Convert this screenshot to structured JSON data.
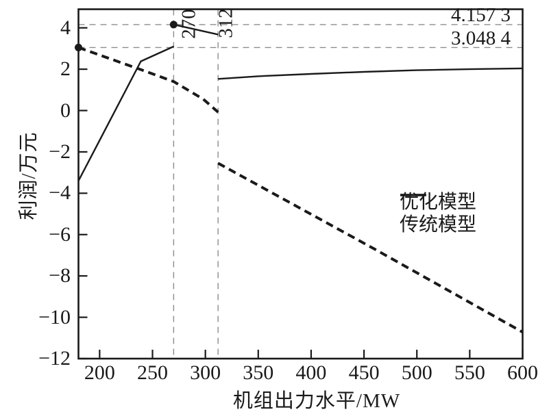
{
  "chart_data": {
    "type": "line",
    "title": "",
    "xlabel": "机组出力水平/MW",
    "ylabel": "利润/万元",
    "xlim": [
      180,
      600
    ],
    "ylim": [
      -12,
      4.9
    ],
    "grid": false,
    "x_ticks": [
      200,
      250,
      300,
      350,
      400,
      450,
      500,
      550,
      600
    ],
    "x_tick_labels": [
      "200",
      "250",
      "300",
      "350",
      "400",
      "450",
      "500",
      "550",
      "600"
    ],
    "y_ticks": [
      4,
      2,
      0,
      -2,
      -4,
      -6,
      -8,
      -10,
      -12
    ],
    "y_tick_labels": [
      "4",
      "2",
      "0",
      "−2",
      "−4",
      "−6",
      "−8",
      "−10",
      "−12"
    ],
    "legend_position": "right-middle",
    "series": [
      {
        "name": "优化模型",
        "style": "solid",
        "color": "#1a1a1a",
        "segments": [
          [
            [
              180,
              -3.4
            ],
            [
              239,
              2.38
            ],
            [
              270,
              3.1
            ]
          ],
          [
            [
              270,
              4.1573
            ],
            [
              312,
              3.68
            ]
          ],
          [
            [
              312,
              1.53
            ],
            [
              350,
              1.66
            ],
            [
              400,
              1.77
            ],
            [
              450,
              1.87
            ],
            [
              500,
              1.95
            ],
            [
              550,
              2.0
            ],
            [
              600,
              2.04
            ]
          ]
        ]
      },
      {
        "name": "传统模型",
        "style": "dashed",
        "color": "#1a1a1a",
        "segments": [
          [
            [
              180,
              3.0484
            ],
            [
              220,
              2.32
            ],
            [
              240,
              1.96
            ],
            [
              270,
              1.4
            ],
            [
              298,
              0.55
            ],
            [
              312,
              -0.08
            ]
          ],
          [
            [
              312,
              -2.55
            ],
            [
              460,
              -6.7
            ],
            [
              600,
              -10.72
            ]
          ]
        ]
      }
    ],
    "markers": [
      {
        "x": 180,
        "y": 3.0484
      },
      {
        "x": 270,
        "y": 4.1573
      }
    ],
    "reference_lines": {
      "vertical": [
        {
          "x": 270,
          "label": "270"
        },
        {
          "x": 312,
          "label": "312"
        }
      ],
      "horizontal": [
        {
          "y": 4.1573,
          "label": "4.157 3"
        },
        {
          "y": 3.0484,
          "label": "3.048 4"
        }
      ]
    },
    "colors": {
      "line": "#1a1a1a",
      "ref_dash": "#8c8c8c"
    }
  }
}
